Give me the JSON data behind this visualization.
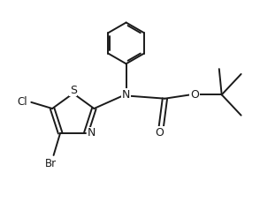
{
  "bg_color": "#ffffff",
  "line_color": "#1a1a1a",
  "line_width": 1.4,
  "font_size": 8.5,
  "fig_width": 2.94,
  "fig_height": 2.38,
  "dpi": 100,
  "xlim": [
    0,
    10
  ],
  "ylim": [
    0,
    8.1
  ]
}
